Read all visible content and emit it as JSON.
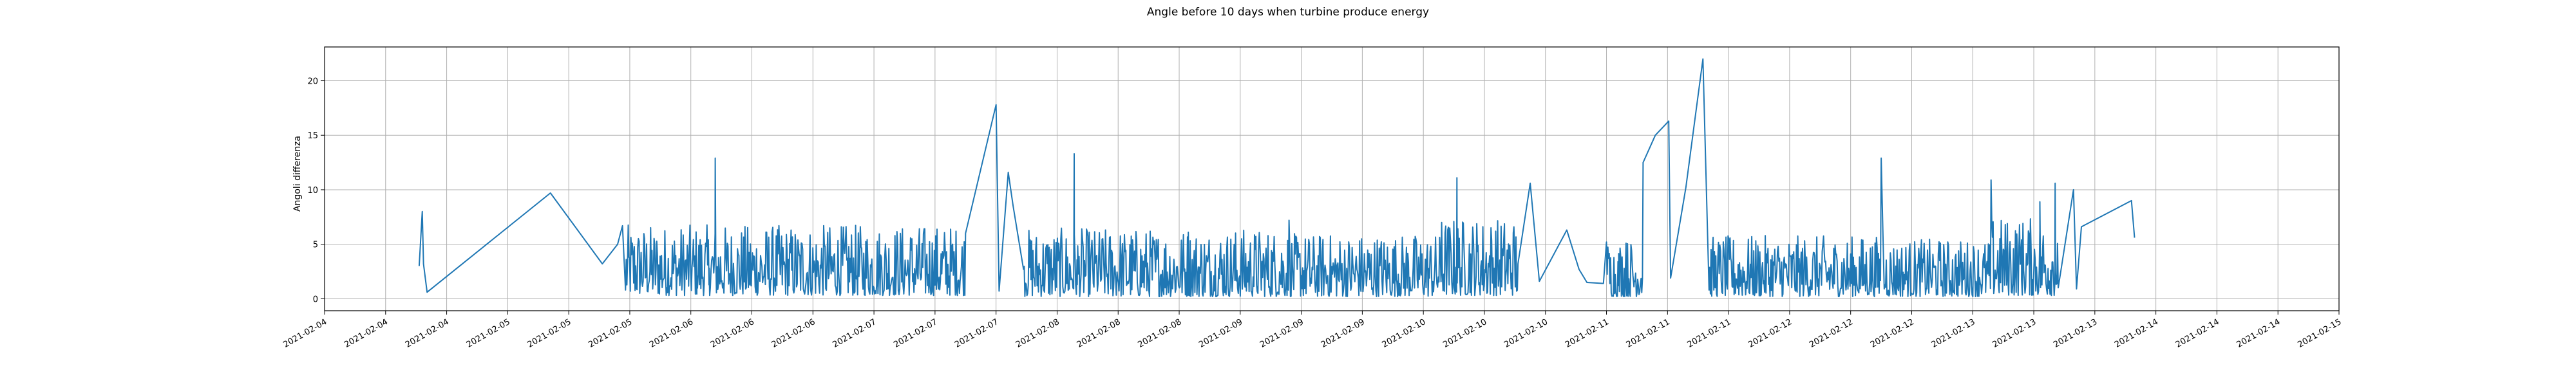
{
  "chart_data": {
    "type": "line",
    "title": "Angle before 10 days when turbine produce energy",
    "xlabel": "",
    "ylabel": "Angoli differenza",
    "x_tick_labels": [
      "2021-02-04",
      "2021-02-04",
      "2021-02-04",
      "2021-02-05",
      "2021-02-05",
      "2021-02-05",
      "2021-02-06",
      "2021-02-06",
      "2021-02-06",
      "2021-02-07",
      "2021-02-07",
      "2021-02-07",
      "2021-02-08",
      "2021-02-08",
      "2021-02-08",
      "2021-02-09",
      "2021-02-09",
      "2021-02-09",
      "2021-02-10",
      "2021-02-10",
      "2021-02-10",
      "2021-02-11",
      "2021-02-11",
      "2021-02-11",
      "2021-02-12",
      "2021-02-12",
      "2021-02-12",
      "2021-02-13",
      "2021-02-13",
      "2021-02-13",
      "2021-02-14",
      "2021-02-14",
      "2021-02-14",
      "2021-02-15"
    ],
    "y_ticks": [
      0,
      5,
      10,
      15,
      20
    ],
    "xlim": [
      0,
      33
    ],
    "ylim": [
      -1.1,
      23.1
    ],
    "grid": true,
    "color": "#1f77b4",
    "series": [
      {
        "name": "",
        "anchors": [
          [
            1.55,
            3.0
          ],
          [
            1.6,
            8.0
          ],
          [
            1.62,
            3.2
          ],
          [
            1.68,
            0.6
          ],
          [
            3.7,
            9.7
          ],
          [
            4.55,
            3.2
          ],
          [
            4.8,
            5.0
          ],
          [
            4.88,
            6.7
          ],
          [
            4.93,
            0.8
          ],
          [
            6.1,
            2.1
          ],
          [
            6.3,
            2.8
          ],
          [
            6.4,
            12.9
          ],
          [
            6.45,
            1.2
          ],
          [
            10.5,
            6.0
          ],
          [
            11.0,
            17.8
          ],
          [
            11.05,
            0.7
          ],
          [
            11.2,
            11.6
          ],
          [
            11.28,
            8.5
          ],
          [
            11.45,
            2.7
          ],
          [
            12.2,
            0.9
          ],
          [
            12.28,
            13.3
          ],
          [
            12.33,
            1.3
          ],
          [
            14.15,
            6.1
          ],
          [
            15.8,
            7.2
          ],
          [
            18.3,
            7.0
          ],
          [
            18.55,
            11.1
          ],
          [
            18.8,
            4.5
          ],
          [
            19.55,
            3.2
          ],
          [
            19.75,
            10.6
          ],
          [
            19.9,
            1.6
          ],
          [
            20.35,
            6.3
          ],
          [
            20.55,
            2.7
          ],
          [
            20.68,
            1.5
          ],
          [
            20.95,
            1.4
          ],
          [
            21.0,
            5.2
          ],
          [
            21.2,
            1.2
          ],
          [
            21.32,
            5.1
          ],
          [
            21.45,
            1.1
          ],
          [
            21.6,
            12.5
          ],
          [
            21.8,
            15.0
          ],
          [
            22.02,
            16.3
          ],
          [
            22.05,
            1.9
          ],
          [
            22.3,
            10.2
          ],
          [
            22.58,
            22.0
          ],
          [
            22.68,
            0.8
          ],
          [
            25.5,
            12.9
          ],
          [
            25.55,
            0.9
          ],
          [
            27.3,
            10.9
          ],
          [
            27.8,
            5.4
          ],
          [
            28.1,
            8.9
          ],
          [
            28.35,
            10.6
          ],
          [
            28.4,
            1.0
          ],
          [
            28.65,
            10.0
          ],
          [
            28.7,
            0.9
          ],
          [
            28.78,
            6.6
          ],
          [
            29.6,
            9.0
          ],
          [
            29.65,
            5.6
          ]
        ],
        "fill_ranges": [
          [
            4.93,
            10.5,
            0.3,
            6.8
          ],
          [
            11.45,
            15.8,
            0.2,
            6.5
          ],
          [
            15.8,
            18.3,
            0.2,
            6.0
          ],
          [
            18.3,
            19.55,
            0.3,
            7.5
          ],
          [
            21.0,
            21.6,
            0.2,
            5.5
          ],
          [
            22.68,
            25.5,
            0.2,
            5.8
          ],
          [
            25.55,
            27.3,
            0.2,
            5.5
          ],
          [
            27.3,
            28.4,
            0.3,
            7.5
          ]
        ]
      }
    ]
  }
}
